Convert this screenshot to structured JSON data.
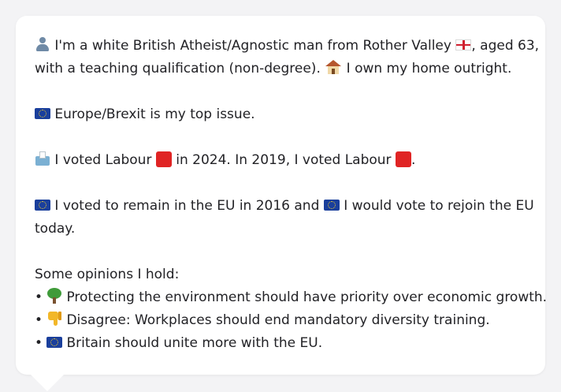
{
  "profile": {
    "intro_line1_a": "I'm a white British Atheist/Agnostic man from Rother Valley",
    "intro_line1_b": ", aged 63,",
    "intro_line2_a": "with a teaching qualification (non-degree).",
    "intro_line2_b": "I own my home outright."
  },
  "top_issue": {
    "text": "Europe/Brexit is my top issue."
  },
  "votes": {
    "text_a": "I voted Labour",
    "text_b": "in 2024. In 2019, I voted Labour",
    "text_c": "."
  },
  "eu_referendum": {
    "text_a": "I voted to remain in the EU in 2016 and",
    "text_b": "I would vote to rejoin the EU",
    "text_c": "today."
  },
  "opinions": {
    "heading": "Some opinions I hold:",
    "bullet": "•",
    "items": [
      {
        "icon": "tree-icon",
        "text": "Protecting the environment should have priority over economic growth."
      },
      {
        "icon": "thumbs-down-icon",
        "text": "Disagree: Workplaces should end mandatory diversity training."
      },
      {
        "icon": "eu-flag-icon",
        "text": "Britain should unite more with the EU."
      }
    ]
  },
  "colors": {
    "card_bg": "#ffffff",
    "page_bg": "#f3f3f5",
    "text": "#222226",
    "labour_red": "#e02424",
    "eu_blue": "#1a3f9c"
  }
}
